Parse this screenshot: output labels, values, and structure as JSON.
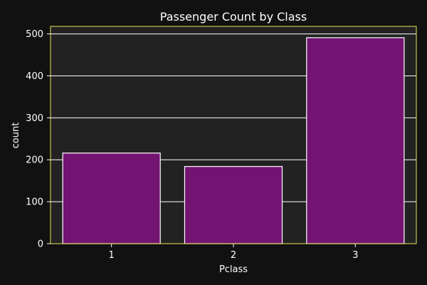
{
  "chart_data": {
    "type": "bar",
    "title": "Passenger Count by Class",
    "xlabel": "Pclass",
    "ylabel": "count",
    "categories": [
      "1",
      "2",
      "3"
    ],
    "values": [
      216,
      184,
      491
    ],
    "ylim": [
      0,
      518
    ],
    "yticks": [
      0,
      100,
      200,
      300,
      400,
      500
    ],
    "grid": true,
    "legend": "none",
    "colors": {
      "figure_background": "#111111",
      "plot_background": "#222222",
      "plot_border": "#e6e65c",
      "bar_fill": "#731472",
      "bar_edge": "#ffffff",
      "grid": "#ffffff",
      "text": "#ffffff"
    }
  }
}
